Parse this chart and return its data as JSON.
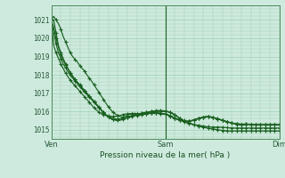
{
  "title": "Pression niveau de la mer( hPa )",
  "bg_color": "#ceeade",
  "grid_color": "#9ecfb0",
  "line_color": "#1a6020",
  "ylim": [
    1014.5,
    1021.8
  ],
  "yticks": [
    1015,
    1016,
    1017,
    1018,
    1019,
    1020,
    1021
  ],
  "xtick_labels": [
    "Ven",
    "Sam",
    "Dim"
  ],
  "xtick_positions": [
    0,
    48,
    96
  ],
  "total_points": 97,
  "series": [
    [
      1021.0,
      1021.2,
      1021.0,
      1020.8,
      1020.5,
      1020.1,
      1019.8,
      1019.5,
      1019.2,
      1019.0,
      1018.85,
      1018.7,
      1018.5,
      1018.35,
      1018.2,
      1018.0,
      1017.82,
      1017.65,
      1017.45,
      1017.25,
      1017.05,
      1016.85,
      1016.65,
      1016.45,
      1016.25,
      1016.1,
      1015.95,
      1015.85,
      1015.78,
      1015.72,
      1015.68,
      1015.72,
      1015.78,
      1015.85,
      1015.88,
      1015.9,
      1015.88,
      1015.85,
      1015.9,
      1015.92,
      1015.95,
      1015.97,
      1016.0,
      1016.02,
      1016.04,
      1016.05,
      1016.05,
      1016.04,
      1016.02,
      1016.0,
      1015.95,
      1015.88,
      1015.8,
      1015.72,
      1015.64,
      1015.56,
      1015.5,
      1015.44,
      1015.38,
      1015.33,
      1015.28,
      1015.24,
      1015.2,
      1015.17,
      1015.14,
      1015.11,
      1015.08,
      1015.06,
      1015.04,
      1015.02,
      1015.0,
      1014.98,
      1014.96,
      1014.95,
      1014.94,
      1014.93,
      1014.93,
      1014.93,
      1014.93,
      1014.93,
      1014.93,
      1014.93,
      1014.93,
      1014.93,
      1014.93,
      1014.93,
      1014.93,
      1014.93,
      1014.93,
      1014.93,
      1014.93,
      1014.93,
      1014.93,
      1014.93,
      1014.93,
      1014.93,
      1014.93
    ],
    [
      1021.0,
      1021.0,
      1020.3,
      1019.6,
      1019.2,
      1018.9,
      1018.6,
      1018.35,
      1018.1,
      1017.9,
      1017.75,
      1017.6,
      1017.45,
      1017.3,
      1017.15,
      1017.0,
      1016.85,
      1016.7,
      1016.55,
      1016.4,
      1016.25,
      1016.1,
      1015.95,
      1015.82,
      1015.7,
      1015.6,
      1015.55,
      1015.52,
      1015.5,
      1015.52,
      1015.55,
      1015.6,
      1015.65,
      1015.72,
      1015.78,
      1015.82,
      1015.85,
      1015.88,
      1015.9,
      1015.93,
      1015.95,
      1015.97,
      1016.0,
      1016.0,
      1016.0,
      1016.0,
      1016.0,
      1016.0,
      1016.0,
      1015.98,
      1015.95,
      1015.9,
      1015.82,
      1015.72,
      1015.62,
      1015.52,
      1015.44,
      1015.38,
      1015.33,
      1015.3,
      1015.28,
      1015.26,
      1015.24,
      1015.22,
      1015.2,
      1015.18,
      1015.16,
      1015.15,
      1015.14,
      1015.14,
      1015.14,
      1015.14,
      1015.13,
      1015.12,
      1015.11,
      1015.1,
      1015.09,
      1015.09,
      1015.09,
      1015.09,
      1015.09,
      1015.09,
      1015.09,
      1015.09,
      1015.09,
      1015.09,
      1015.09,
      1015.09,
      1015.09,
      1015.09,
      1015.09,
      1015.09,
      1015.09,
      1015.09,
      1015.09,
      1015.09,
      1015.09
    ],
    [
      1021.0,
      1019.6,
      1019.2,
      1018.9,
      1018.6,
      1018.35,
      1018.1,
      1017.9,
      1017.7,
      1017.55,
      1017.4,
      1017.25,
      1017.1,
      1016.95,
      1016.8,
      1016.65,
      1016.5,
      1016.35,
      1016.2,
      1016.08,
      1015.97,
      1015.88,
      1015.82,
      1015.78,
      1015.75,
      1015.73,
      1015.72,
      1015.73,
      1015.75,
      1015.78,
      1015.82,
      1015.85,
      1015.87,
      1015.88,
      1015.87,
      1015.85,
      1015.82,
      1015.82,
      1015.85,
      1015.88,
      1015.9,
      1015.92,
      1015.93,
      1015.93,
      1015.93,
      1015.92,
      1015.9,
      1015.88,
      1015.85,
      1015.8,
      1015.74,
      1015.68,
      1015.62,
      1015.56,
      1015.52,
      1015.48,
      1015.46,
      1015.46,
      1015.47,
      1015.5,
      1015.53,
      1015.58,
      1015.62,
      1015.66,
      1015.69,
      1015.72,
      1015.72,
      1015.71,
      1015.68,
      1015.64,
      1015.6,
      1015.56,
      1015.52,
      1015.48,
      1015.44,
      1015.4,
      1015.36,
      1015.33,
      1015.3,
      1015.28,
      1015.27,
      1015.27,
      1015.28,
      1015.3,
      1015.28,
      1015.27,
      1015.27,
      1015.27,
      1015.27,
      1015.27,
      1015.27,
      1015.27,
      1015.27,
      1015.27,
      1015.27,
      1015.27,
      1015.27
    ],
    [
      1021.0,
      1020.3,
      1019.7,
      1019.2,
      1018.9,
      1018.6,
      1018.38,
      1018.18,
      1017.98,
      1017.82,
      1017.66,
      1017.5,
      1017.35,
      1017.2,
      1017.06,
      1016.92,
      1016.78,
      1016.64,
      1016.5,
      1016.36,
      1016.22,
      1016.08,
      1015.94,
      1015.82,
      1015.72,
      1015.64,
      1015.6,
      1015.58,
      1015.58,
      1015.6,
      1015.62,
      1015.65,
      1015.68,
      1015.72,
      1015.75,
      1015.78,
      1015.8,
      1015.82,
      1015.84,
      1015.86,
      1015.88,
      1015.89,
      1015.9,
      1015.9,
      1015.9,
      1015.9,
      1015.9,
      1015.88,
      1015.86,
      1015.82,
      1015.76,
      1015.7,
      1015.64,
      1015.58,
      1015.53,
      1015.49,
      1015.46,
      1015.45,
      1015.46,
      1015.48,
      1015.52,
      1015.56,
      1015.6,
      1015.64,
      1015.67,
      1015.69,
      1015.7,
      1015.69,
      1015.67,
      1015.63,
      1015.59,
      1015.55,
      1015.51,
      1015.47,
      1015.43,
      1015.4,
      1015.37,
      1015.34,
      1015.32,
      1015.31,
      1015.3,
      1015.3,
      1015.31,
      1015.3,
      1015.28,
      1015.27,
      1015.27,
      1015.27,
      1015.27,
      1015.27,
      1015.27,
      1015.27,
      1015.27,
      1015.27,
      1015.27,
      1015.27,
      1015.27
    ],
    [
      1021.0,
      1020.6,
      1020.0,
      1019.5,
      1019.1,
      1018.8,
      1018.56,
      1018.33,
      1018.12,
      1017.93,
      1017.75,
      1017.58,
      1017.42,
      1017.27,
      1017.12,
      1016.97,
      1016.82,
      1016.67,
      1016.52,
      1016.37,
      1016.22,
      1016.07,
      1015.93,
      1015.8,
      1015.7,
      1015.62,
      1015.58,
      1015.56,
      1015.56,
      1015.58,
      1015.61,
      1015.64,
      1015.67,
      1015.7,
      1015.73,
      1015.76,
      1015.78,
      1015.8,
      1015.82,
      1015.84,
      1015.86,
      1015.88,
      1015.89,
      1015.9,
      1015.9,
      1015.89,
      1015.88,
      1015.86,
      1015.84,
      1015.8,
      1015.75,
      1015.69,
      1015.63,
      1015.58,
      1015.53,
      1015.49,
      1015.47,
      1015.46,
      1015.47,
      1015.5,
      1015.54,
      1015.58,
      1015.62,
      1015.65,
      1015.68,
      1015.7,
      1015.7,
      1015.69,
      1015.67,
      1015.63,
      1015.59,
      1015.55,
      1015.51,
      1015.47,
      1015.43,
      1015.4,
      1015.37,
      1015.34,
      1015.32,
      1015.31,
      1015.3,
      1015.3,
      1015.31,
      1015.3,
      1015.28,
      1015.27,
      1015.27,
      1015.27,
      1015.27,
      1015.27,
      1015.27,
      1015.27,
      1015.27,
      1015.27,
      1015.27,
      1015.27,
      1015.27
    ]
  ]
}
